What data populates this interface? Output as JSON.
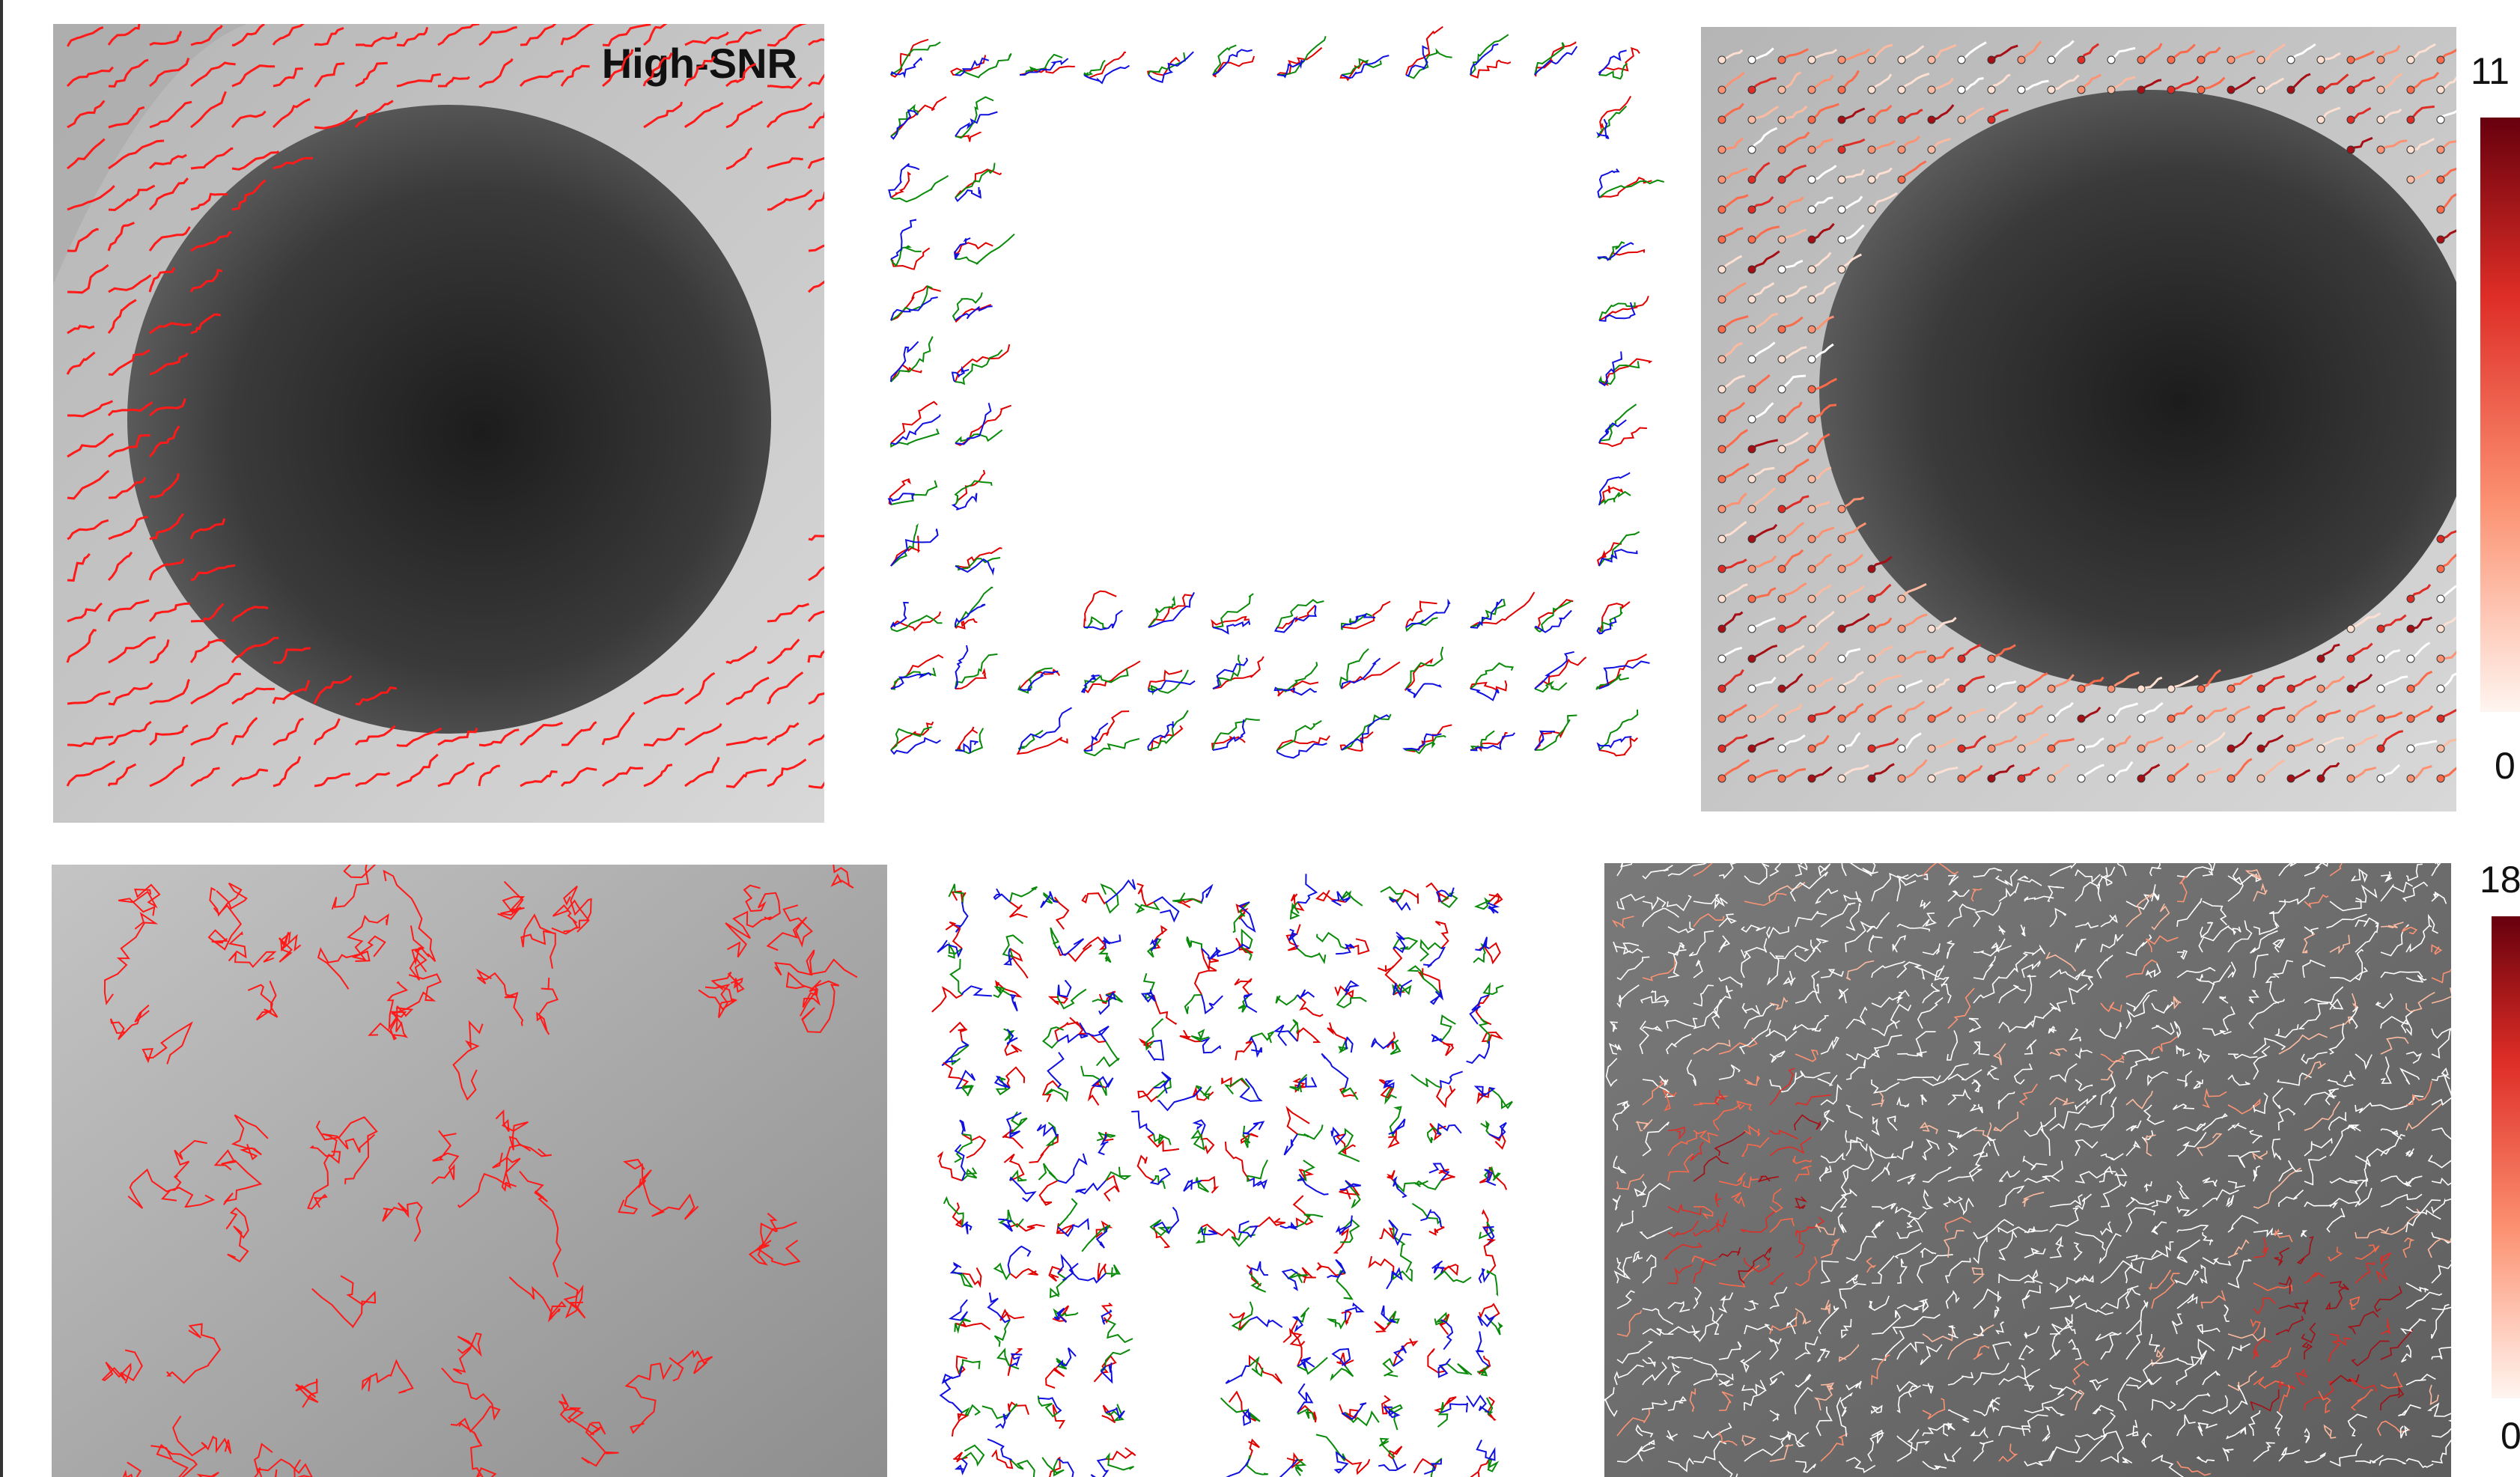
{
  "panels": {
    "top_left_label": "High-SNR"
  },
  "colorbars": [
    {
      "max_label": "11",
      "min_label": "0"
    },
    {
      "max_label": "18",
      "min_label": "0"
    }
  ]
}
